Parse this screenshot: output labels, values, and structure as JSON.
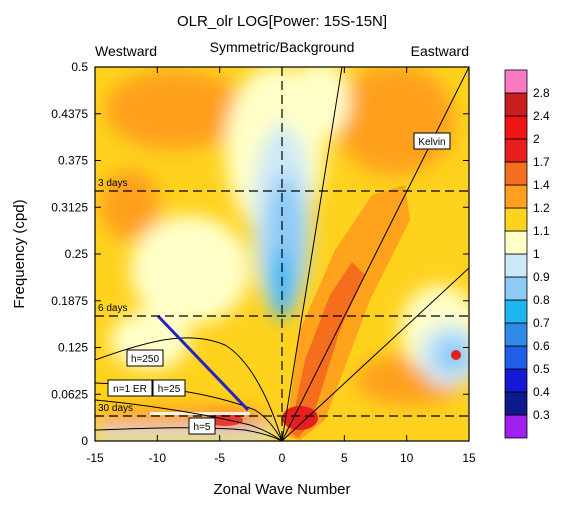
{
  "chart_data": {
    "type": "heatmap",
    "title": "OLR_olr LOG[Power: 15S-15N]",
    "subtitle": "Symmetric/Background",
    "left_label": "Westward",
    "right_label": "Eastward",
    "xlabel": "Zonal Wave Number",
    "ylabel": "Frequency (cpd)",
    "xlim": [
      -15,
      15
    ],
    "ylim": [
      0,
      0.5
    ],
    "x_ticks": [
      -15,
      -10,
      -5,
      0,
      5,
      10,
      15
    ],
    "x_tick_labels": [
      "-15",
      "-10",
      "-5",
      "0",
      "5",
      "10",
      "15"
    ],
    "y_ticks": [
      0,
      0.0625,
      0.125,
      0.1875,
      0.25,
      0.3125,
      0.375,
      0.4375,
      0.5
    ],
    "y_tick_labels": [
      "0",
      "0.0625",
      "0.125",
      "0.1875",
      "0.25",
      "0.3125",
      "0.375",
      "0.4375",
      "0.5"
    ],
    "contour_levels": [
      0.3,
      0.4,
      0.5,
      0.6,
      0.7,
      0.8,
      0.9,
      1,
      1.1,
      1.2,
      1.4,
      1.7,
      2,
      2.4,
      2.8
    ],
    "colorbar_labels": [
      "0.3",
      "0.4",
      "0.5",
      "0.6",
      "0.7",
      "0.8",
      "0.9",
      "1",
      "1.1",
      "1.2",
      "1.4",
      "1.7",
      "2",
      "2.4",
      "2.8"
    ],
    "colors": [
      "#a020f0",
      "#0c1a8c",
      "#1717d6",
      "#1f5fe6",
      "#2e8ae6",
      "#1fb6f0",
      "#8ccaf7",
      "#cde9f7",
      "#ffffc8",
      "#ffd21e",
      "#ffa01e",
      "#f56e1e",
      "#e61e1e",
      "#f01414",
      "#c81e1e",
      "#f87ac0"
    ],
    "day_lines": [
      {
        "label": "3 days",
        "freq": 0.3333
      },
      {
        "label": "6 days",
        "freq": 0.1667
      },
      {
        "label": "30 days",
        "freq": 0.0333
      }
    ],
    "dispersion_labels": [
      {
        "label": "Kelvin",
        "x": 11.8,
        "y": 0.398
      },
      {
        "label": "h=250",
        "x": -10.5,
        "y": 0.138
      },
      {
        "label": "n=1 ER",
        "x": -12.5,
        "y": 0.081
      },
      {
        "label": "h=25",
        "x": -9,
        "y": 0.081
      },
      {
        "label": "h=5",
        "x": -6.3,
        "y": 0.021
      }
    ],
    "features": [
      {
        "name": "enhanced-kelvin-band",
        "from": [
          0.5,
          0.02
        ],
        "to": [
          6.5,
          0.2
        ],
        "value": 1.7
      },
      {
        "name": "westward-low-frequency-band",
        "from": [
          -14,
          0.01
        ],
        "to": [
          -1,
          0.04
        ],
        "value": 1.2
      },
      {
        "name": "low-power-tongue",
        "from": [
          -3,
          0.1
        ],
        "to": [
          1.5,
          0.32
        ],
        "value": 0.8
      },
      {
        "name": "local-minimum-eastward",
        "at": [
          14,
          0.14
        ],
        "value": 0.5
      }
    ]
  }
}
